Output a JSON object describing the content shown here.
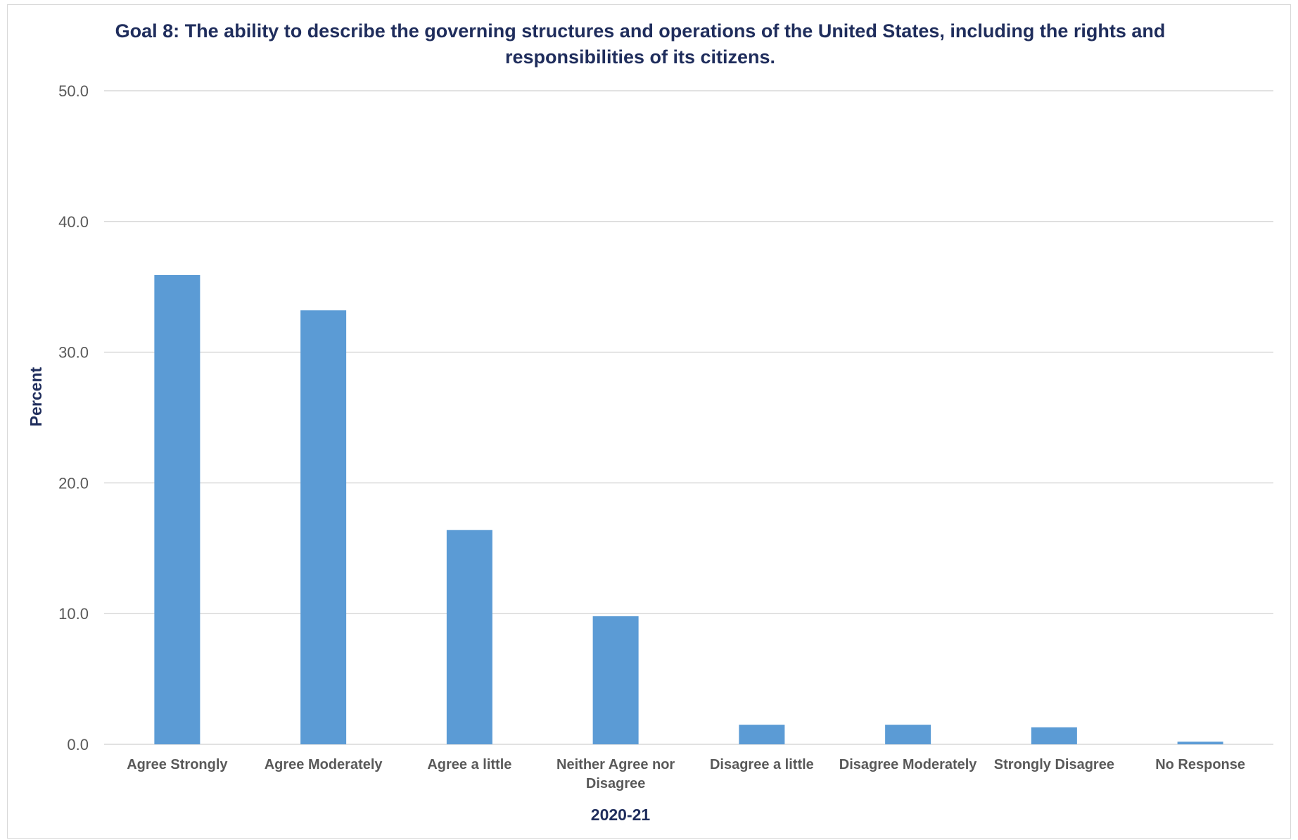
{
  "chart_data": {
    "type": "bar",
    "title": "Goal 8: The ability to describe the governing structures and operations of the United States, including the rights and responsibilities of its citizens.",
    "xlabel": "2020-21",
    "ylabel": "Percent",
    "ylim": [
      0,
      50
    ],
    "yticks": [
      "0.0",
      "10.0",
      "20.0",
      "30.0",
      "40.0",
      "50.0"
    ],
    "grid": true,
    "categories": [
      [
        "Agree Strongly"
      ],
      [
        "Agree Moderately"
      ],
      [
        "Agree a little"
      ],
      [
        "Neither Agree nor",
        "Disagree"
      ],
      [
        "Disagree a little"
      ],
      [
        "Disagree Moderately"
      ],
      [
        "Strongly Disagree"
      ],
      [
        "No Response"
      ]
    ],
    "values": [
      35.9,
      33.2,
      16.4,
      9.8,
      1.5,
      1.5,
      1.3,
      0.2
    ],
    "colors": {
      "bar": "#5b9bd5",
      "grid": "#d9d9d9",
      "title": "#1f2d5c"
    }
  }
}
